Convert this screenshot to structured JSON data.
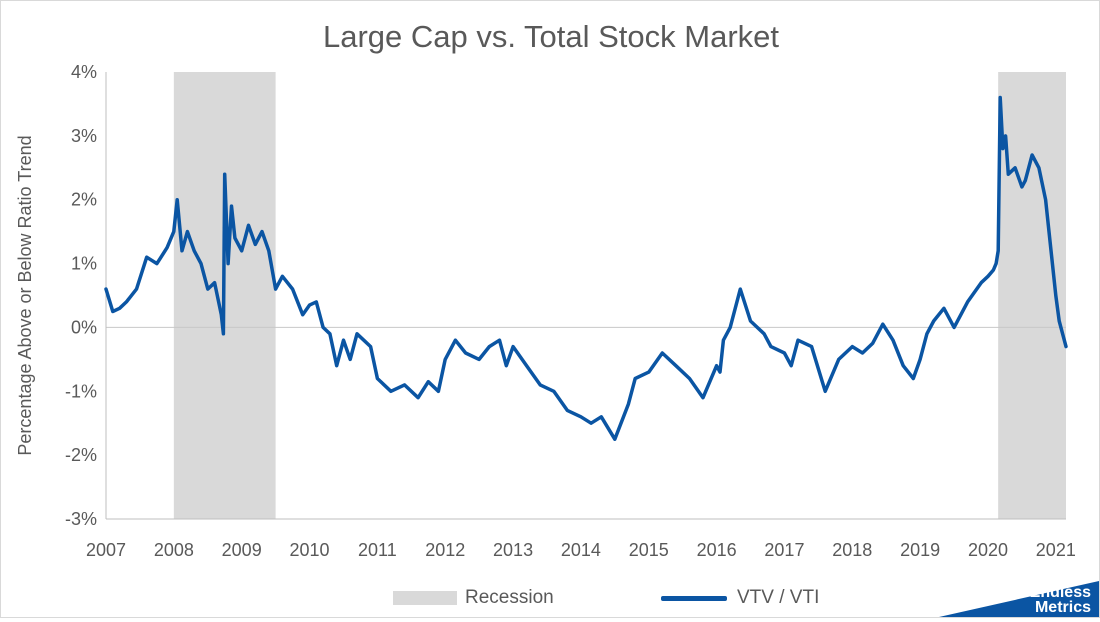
{
  "chart_data": {
    "type": "line",
    "title": "Large Cap vs. Total Stock Market",
    "xlabel": "",
    "ylabel": "Percentage Above or Below Ratio Trend",
    "x_ticks": [
      "2007",
      "2008",
      "2009",
      "2010",
      "2011",
      "2012",
      "2013",
      "2014",
      "2015",
      "2016",
      "2017",
      "2018",
      "2019",
      "2020",
      "2021"
    ],
    "y_ticks": [
      "4%",
      "3%",
      "2%",
      "1%",
      "0%",
      "-1%",
      "-2%",
      "-3%"
    ],
    "xlim": [
      2007.0,
      2021.15
    ],
    "ylim": [
      -3,
      4
    ],
    "grid": false,
    "zero_line": true,
    "legend_position": "bottom",
    "recessions": [
      {
        "start": 2008.0,
        "end": 2009.5
      },
      {
        "start": 2020.15,
        "end": 2021.15
      }
    ],
    "series": [
      {
        "name": "VTV / VTI",
        "color": "#0b55a3",
        "x": [
          2007.0,
          2007.1,
          2007.2,
          2007.3,
          2007.45,
          2007.6,
          2007.75,
          2007.9,
          2008.0,
          2008.05,
          2008.12,
          2008.2,
          2008.3,
          2008.4,
          2008.5,
          2008.6,
          2008.7,
          2008.73,
          2008.75,
          2008.8,
          2008.85,
          2008.9,
          2009.0,
          2009.1,
          2009.2,
          2009.3,
          2009.4,
          2009.5,
          2009.6,
          2009.75,
          2009.9,
          2010.0,
          2010.1,
          2010.2,
          2010.3,
          2010.4,
          2010.5,
          2010.6,
          2010.7,
          2010.8,
          2010.9,
          2011.0,
          2011.2,
          2011.4,
          2011.6,
          2011.75,
          2011.9,
          2012.0,
          2012.15,
          2012.3,
          2012.5,
          2012.65,
          2012.8,
          2012.9,
          2013.0,
          2013.2,
          2013.4,
          2013.6,
          2013.8,
          2014.0,
          2014.15,
          2014.3,
          2014.5,
          2014.7,
          2014.8,
          2015.0,
          2015.2,
          2015.4,
          2015.6,
          2015.8,
          2016.0,
          2016.05,
          2016.1,
          2016.2,
          2016.35,
          2016.5,
          2016.7,
          2016.8,
          2017.0,
          2017.1,
          2017.2,
          2017.4,
          2017.6,
          2017.8,
          2018.0,
          2018.15,
          2018.3,
          2018.45,
          2018.6,
          2018.75,
          2018.9,
          2019.0,
          2019.1,
          2019.2,
          2019.35,
          2019.5,
          2019.7,
          2019.9,
          2020.0,
          2020.08,
          2020.12,
          2020.15,
          2020.18,
          2020.22,
          2020.26,
          2020.3,
          2020.4,
          2020.5,
          2020.55,
          2020.65,
          2020.75,
          2020.85,
          2020.95,
          2021.0,
          2021.05,
          2021.1,
          2021.15
        ],
        "y": [
          0.6,
          0.25,
          0.3,
          0.4,
          0.6,
          1.1,
          1.0,
          1.25,
          1.5,
          2.0,
          1.2,
          1.5,
          1.2,
          1.0,
          0.6,
          0.7,
          0.2,
          -0.1,
          2.4,
          1.0,
          1.9,
          1.4,
          1.2,
          1.6,
          1.3,
          1.5,
          1.2,
          0.6,
          0.8,
          0.6,
          0.2,
          0.35,
          0.4,
          0.0,
          -0.1,
          -0.6,
          -0.2,
          -0.5,
          -0.1,
          -0.2,
          -0.3,
          -0.8,
          -1.0,
          -0.9,
          -1.1,
          -0.85,
          -1.0,
          -0.5,
          -0.2,
          -0.4,
          -0.5,
          -0.3,
          -0.2,
          -0.6,
          -0.3,
          -0.6,
          -0.9,
          -1.0,
          -1.3,
          -1.4,
          -1.5,
          -1.4,
          -1.75,
          -1.2,
          -0.8,
          -0.7,
          -0.4,
          -0.6,
          -0.8,
          -1.1,
          -0.6,
          -0.7,
          -0.2,
          0.0,
          0.6,
          0.1,
          -0.1,
          -0.3,
          -0.4,
          -0.6,
          -0.2,
          -0.3,
          -1.0,
          -0.5,
          -0.3,
          -0.4,
          -0.25,
          0.05,
          -0.2,
          -0.6,
          -0.8,
          -0.5,
          -0.1,
          0.1,
          0.3,
          0.0,
          0.4,
          0.7,
          0.8,
          0.9,
          1.0,
          1.2,
          3.6,
          2.8,
          3.0,
          2.4,
          2.5,
          2.2,
          2.3,
          2.7,
          2.5,
          2.0,
          1.0,
          0.5,
          0.1,
          -0.1,
          -0.3
        ]
      }
    ]
  },
  "legend": {
    "recession_label": "Recession",
    "series_label": "VTV / VTI"
  },
  "logo": {
    "line1": "Endless",
    "line2": "Metrics",
    "color": "#0b55a3"
  }
}
